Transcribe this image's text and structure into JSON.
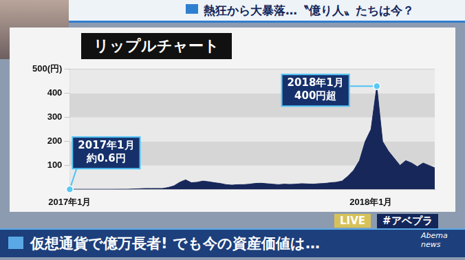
{
  "header": {
    "headline": "熱狂から大暴落…〝億り人〟たちは今？"
  },
  "chart_data": {
    "type": "line",
    "title": "リップルチャート",
    "categories": [
      "2017年1月",
      null,
      null,
      null,
      null,
      null,
      null,
      null,
      null,
      null,
      null,
      null,
      null,
      null,
      null,
      null,
      null,
      null,
      null,
      null,
      null,
      null,
      null,
      null,
      null,
      null,
      null,
      null,
      null,
      null,
      null,
      null,
      null,
      null,
      null,
      null,
      null,
      null,
      null,
      null,
      null,
      null,
      null,
      null,
      null,
      null,
      null,
      null,
      null,
      null,
      null,
      null,
      "2018年1月",
      null,
      null,
      null,
      null,
      null,
      null,
      null,
      null,
      null,
      null,
      null
    ],
    "values": [
      0.6,
      0.7,
      0.7,
      0.7,
      0.7,
      0.7,
      0.7,
      0.7,
      0.8,
      1,
      1,
      2,
      3,
      4,
      4,
      4,
      4,
      8,
      15,
      30,
      40,
      28,
      30,
      35,
      32,
      28,
      25,
      20,
      18,
      20,
      20,
      22,
      25,
      26,
      24,
      22,
      20,
      22,
      21,
      22,
      24,
      23,
      22,
      24,
      25,
      28,
      30,
      35,
      55,
      80,
      120,
      200,
      250,
      430,
      200,
      160,
      130,
      100,
      120,
      110,
      95,
      110,
      100,
      90
    ],
    "color": "#17275a",
    "ylim": [
      0,
      500
    ],
    "yticks": [
      100,
      200,
      300,
      400,
      {
        "value": 500,
        "label": "500(円)"
      }
    ],
    "grid": true,
    "annotations": [
      {
        "x": 0,
        "y": 0.6,
        "text": [
          "2017年1月",
          "約0.6円"
        ]
      },
      {
        "x": 53,
        "y": 430,
        "text": [
          "2018年1月",
          "400円超"
        ]
      }
    ]
  },
  "caption": {
    "text": "仮想通貨で億万長者! でも今の資産価値は…",
    "live": "LIVE",
    "hashtag": "#アベプラ",
    "logo": [
      "Abema",
      "news"
    ]
  }
}
